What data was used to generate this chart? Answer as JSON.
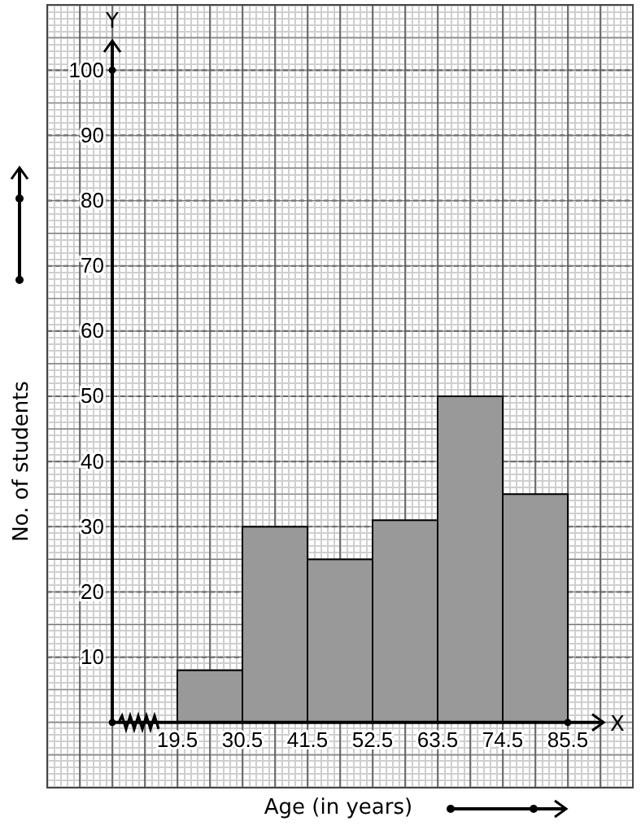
{
  "chart_data": {
    "type": "histogram",
    "xlabel": "Age (in years)",
    "ylabel": "No. of students",
    "bins": [
      19.5,
      30.5,
      41.5,
      52.5,
      63.5,
      74.5,
      85.5
    ],
    "values": [
      8,
      30,
      25,
      31,
      50,
      35
    ],
    "color": "#999999",
    "xlim": [
      -2.5,
      96.5
    ],
    "ylim": [
      -10,
      110
    ],
    "xticks": [
      19.5,
      30.5,
      41.5,
      52.5,
      63.5,
      74.5,
      85.5
    ],
    "yticks": [
      10,
      20,
      30,
      40,
      50,
      60,
      70,
      80,
      90,
      100
    ],
    "grid": true,
    "annotations": [
      "X",
      "Y"
    ]
  }
}
